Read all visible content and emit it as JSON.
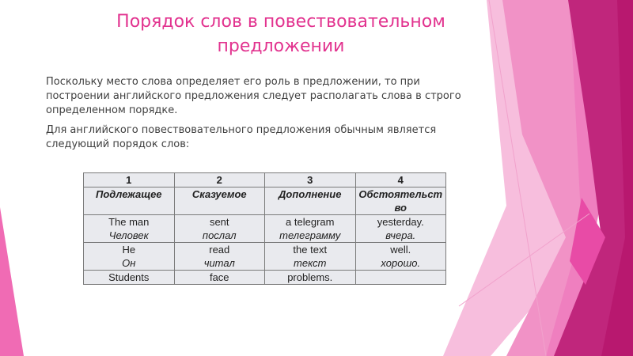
{
  "slide": {
    "title": "Порядок слов в повествовательном предложении",
    "paragraphs": [
      "Поскольку место слова определяет его роль в предложении, то при построении английского предложения следует располагать слова в строго определенном порядке.",
      "Для английского повествовательного предложения обычным является следующий порядок слов:"
    ],
    "table": {
      "headers": [
        "1",
        "2",
        "3",
        "4"
      ],
      "roles": [
        "Подлежащее",
        "Сказуемое",
        "Дополнение",
        "Обстоятельство"
      ],
      "rows": [
        [
          {
            "en": "The man",
            "ru": "Человек"
          },
          {
            "en": "sent",
            "ru": "послал"
          },
          {
            "en": "a telegram",
            "ru": "телеграмму"
          },
          {
            "en": "yesterday.",
            "ru": "вчера."
          }
        ],
        [
          {
            "en": "He",
            "ru": "Он"
          },
          {
            "en": "read",
            "ru": "читал"
          },
          {
            "en": "the text",
            "ru": "текст"
          },
          {
            "en": "well.",
            "ru": "хорошо."
          }
        ],
        [
          {
            "en": "Students",
            "ru": ""
          },
          {
            "en": "face",
            "ru": ""
          },
          {
            "en": "problems.",
            "ru": ""
          },
          {
            "en": "",
            "ru": ""
          }
        ]
      ]
    },
    "colors": {
      "accent": "#e2338f",
      "magenta": "#c0267c",
      "pink": "#f192c6"
    }
  }
}
